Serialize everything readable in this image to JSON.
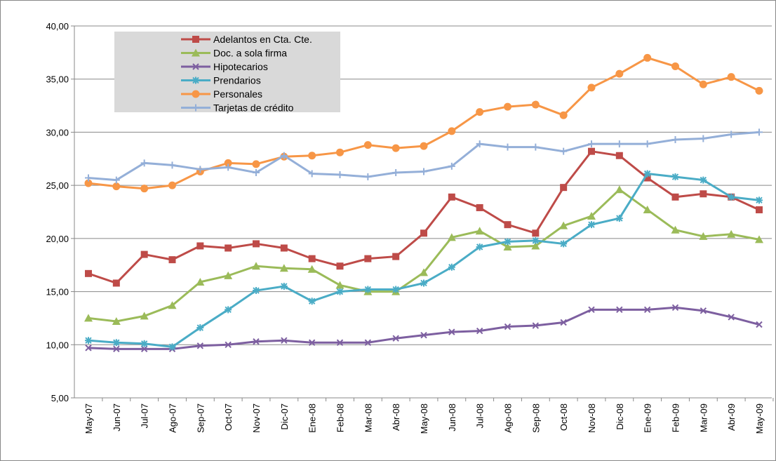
{
  "chart_data": {
    "type": "line",
    "categories": [
      "May-07",
      "Jun-07",
      "Jul-07",
      "Ago-07",
      "Sep-07",
      "Oct-07",
      "Nov-07",
      "Dic-07",
      "Ene-08",
      "Feb-08",
      "Mar-08",
      "Abr-08",
      "May-08",
      "Jun-08",
      "Jul-08",
      "Ago-08",
      "Sep-08",
      "Oct-08",
      "Nov-08",
      "Dic-08",
      "Ene-09",
      "Feb-09",
      "Mar-09",
      "Abr-09",
      "May-09"
    ],
    "series": [
      {
        "name": "Adelantos en Cta. Cte.",
        "color": "#be4b48",
        "marker": "square",
        "values": [
          16.7,
          15.8,
          18.5,
          18.0,
          19.3,
          19.1,
          19.5,
          19.1,
          18.1,
          17.4,
          18.1,
          18.3,
          20.5,
          23.9,
          22.9,
          21.3,
          20.5,
          24.8,
          28.2,
          27.8,
          25.7,
          23.9,
          24.2,
          23.9,
          22.7
        ]
      },
      {
        "name": "Doc. a sola firma",
        "color": "#9bbb59",
        "marker": "triangle",
        "values": [
          12.5,
          12.2,
          12.7,
          13.7,
          15.9,
          16.5,
          17.4,
          17.2,
          17.1,
          15.6,
          15.0,
          15.0,
          16.8,
          20.1,
          20.7,
          19.2,
          19.3,
          21.2,
          22.1,
          24.6,
          22.7,
          20.8,
          20.2,
          20.4,
          19.9
        ]
      },
      {
        "name": "Hipotecarios",
        "color": "#7d5fa0",
        "marker": "x",
        "values": [
          9.7,
          9.6,
          9.6,
          9.6,
          9.9,
          10.0,
          10.3,
          10.4,
          10.2,
          10.2,
          10.2,
          10.6,
          10.9,
          11.2,
          11.3,
          11.7,
          11.8,
          12.1,
          13.3,
          13.3,
          13.3,
          13.5,
          13.2,
          12.6,
          11.9
        ]
      },
      {
        "name": "Prendarios",
        "color": "#4aacc6",
        "marker": "star",
        "values": [
          10.4,
          10.2,
          10.1,
          9.8,
          11.6,
          13.3,
          15.1,
          15.5,
          14.1,
          15.0,
          15.2,
          15.2,
          15.8,
          17.3,
          19.2,
          19.7,
          19.8,
          19.5,
          21.3,
          21.9,
          26.1,
          25.8,
          25.5,
          23.9,
          23.6
        ]
      },
      {
        "name": "Personales",
        "color": "#f79646",
        "marker": "circle",
        "values": [
          25.2,
          24.9,
          24.7,
          25.0,
          26.3,
          27.1,
          27.0,
          27.7,
          27.8,
          28.1,
          28.8,
          28.5,
          28.7,
          30.1,
          31.9,
          32.4,
          32.6,
          31.6,
          34.2,
          35.5,
          37.0,
          36.2,
          34.5,
          35.2,
          33.9
        ]
      },
      {
        "name": "Tarjetas de crédito",
        "color": "#94afd8",
        "marker": "plus",
        "values": [
          25.7,
          25.5,
          27.1,
          26.9,
          26.5,
          26.7,
          26.2,
          27.8,
          26.1,
          26.0,
          25.8,
          26.2,
          26.3,
          26.8,
          28.9,
          28.6,
          28.6,
          28.2,
          28.9,
          28.9,
          28.9,
          29.3,
          29.4,
          29.8,
          30.0
        ]
      }
    ],
    "ylim": [
      5,
      40
    ],
    "yticks": [
      {
        "value": 5,
        "label": "5,00"
      },
      {
        "value": 10,
        "label": "10,00"
      },
      {
        "value": 15,
        "label": "15,00"
      },
      {
        "value": 20,
        "label": "20,00"
      },
      {
        "value": 25,
        "label": "25,00"
      },
      {
        "value": 30,
        "label": "30,00"
      },
      {
        "value": 35,
        "label": "35,00"
      },
      {
        "value": 40,
        "label": "40,00"
      }
    ],
    "grid": true
  }
}
